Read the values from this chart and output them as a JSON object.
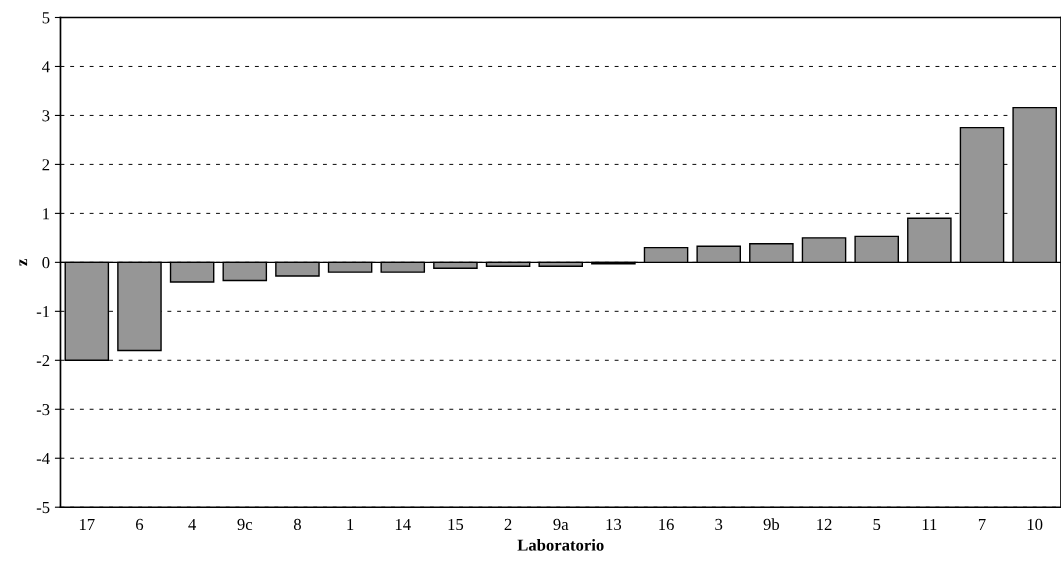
{
  "chart_data": {
    "type": "bar",
    "xlabel": "Laboratorio",
    "ylabel": "z",
    "categories": [
      "17",
      "6",
      "4",
      "9c",
      "8",
      "1",
      "14",
      "15",
      "2",
      "9a",
      "13",
      "16",
      "3",
      "9b",
      "12",
      "5",
      "11",
      "7",
      "10"
    ],
    "values": [
      -2.0,
      -1.8,
      -0.4,
      -0.37,
      -0.28,
      -0.2,
      -0.2,
      -0.12,
      -0.08,
      -0.08,
      -0.03,
      0.3,
      0.33,
      0.38,
      0.5,
      0.53,
      0.9,
      2.75,
      3.16
    ],
    "color": "#969696",
    "ylim": [
      -5,
      5
    ],
    "yticks": [
      -5,
      -4,
      -3,
      -2,
      -1,
      0,
      1,
      2,
      3,
      4,
      5
    ],
    "grid": "y",
    "line_style": "dashed"
  }
}
